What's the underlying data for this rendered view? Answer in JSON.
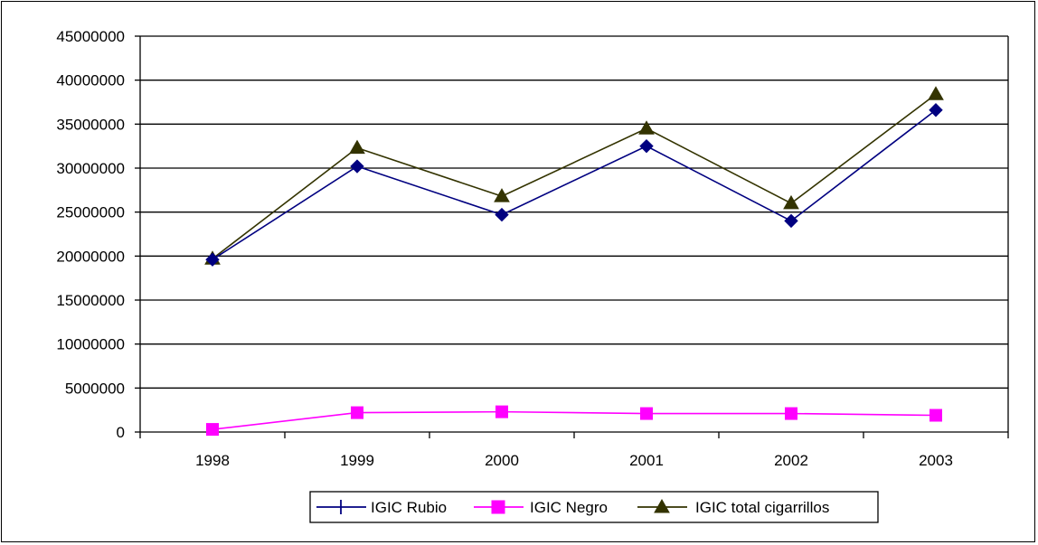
{
  "chart_data": {
    "type": "line",
    "categories": [
      "1998",
      "1999",
      "2000",
      "2001",
      "2002",
      "2003"
    ],
    "ylim": [
      0,
      45000000
    ],
    "yticks": [
      0,
      5000000,
      10000000,
      15000000,
      20000000,
      25000000,
      30000000,
      35000000,
      40000000,
      45000000
    ],
    "grid": true,
    "legend_position": "bottom",
    "series": [
      {
        "name": "IGIC Rubio",
        "values": [
          19600000,
          30200000,
          24700000,
          32500000,
          24000000,
          36600000
        ],
        "color": "#000080",
        "marker": "diamond"
      },
      {
        "name": "IGIC Negro",
        "values": [
          300000,
          2200000,
          2300000,
          2100000,
          2100000,
          1900000
        ],
        "color": "#FF00FF",
        "marker": "square"
      },
      {
        "name": "IGIC total cigarrillos",
        "values": [
          19700000,
          32300000,
          26800000,
          34500000,
          26000000,
          38400000
        ],
        "color": "#333300",
        "marker": "triangle"
      }
    ]
  }
}
